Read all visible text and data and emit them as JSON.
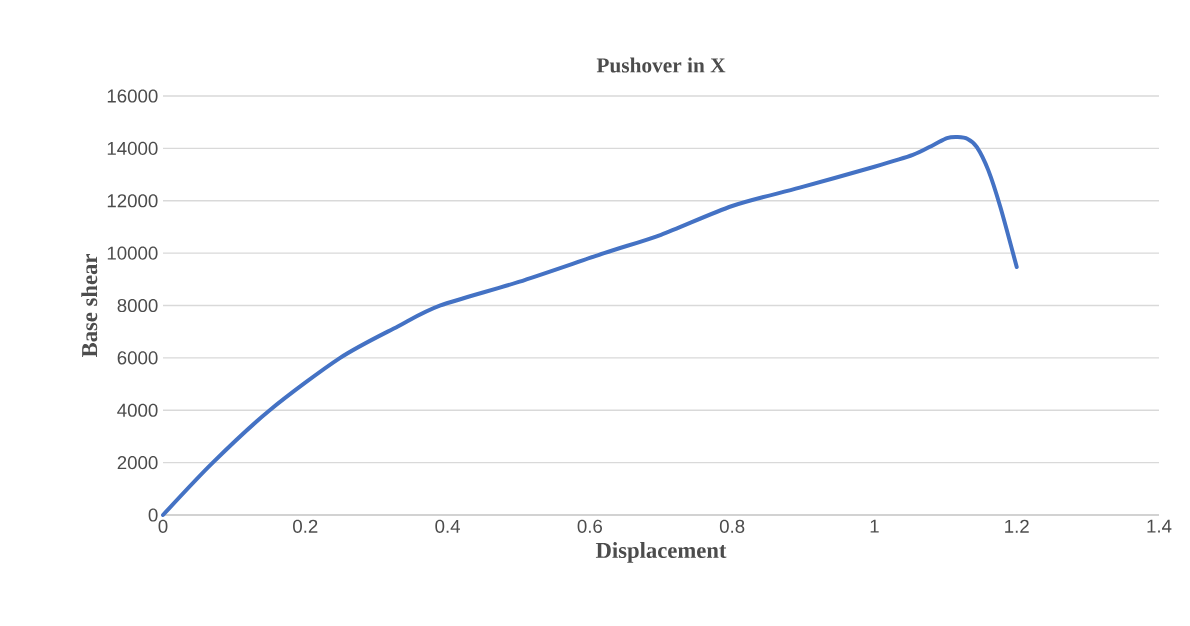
{
  "chart_data": {
    "type": "line",
    "title": "Pushover in X",
    "xlabel": "Displacement",
    "ylabel": "Base shear",
    "x": [
      0,
      0.07,
      0.15,
      0.249,
      0.33,
      0.39,
      0.5,
      0.62,
      0.7,
      0.8,
      0.895,
      1.0,
      1.054,
      1.083,
      1.102,
      1.117,
      1.131,
      1.144,
      1.16,
      1.177,
      1.2
    ],
    "series": [
      {
        "color": "#4472c4",
        "values": [
          0,
          2000,
          4000,
          6000,
          7200,
          8000,
          8900,
          10000,
          10700,
          11800,
          12500,
          13300,
          13750,
          14130,
          14390,
          14430,
          14360,
          14050,
          13170,
          11760,
          9470
        ]
      }
    ],
    "xlim": [
      0,
      1.4
    ],
    "xticks": [
      0,
      0.2,
      0.4,
      0.6,
      0.8,
      1,
      1.2,
      1.4
    ],
    "ylim": [
      0,
      16000
    ],
    "yticks": [
      0,
      2000,
      4000,
      6000,
      8000,
      10000,
      12000,
      14000,
      16000
    ],
    "grid": "y",
    "marker": "none",
    "line_style": "solid"
  }
}
